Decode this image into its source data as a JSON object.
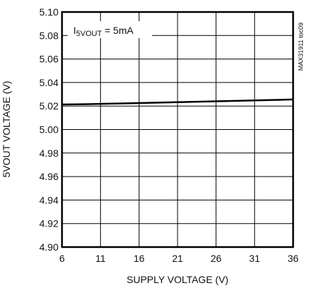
{
  "chart_data": {
    "type": "line",
    "xlabel": "SUPPLY VOLTAGE (V)",
    "ylabel": "5VOUT VOLTAGE (V)",
    "xlim": [
      6,
      36
    ],
    "ylim": [
      4.9,
      5.1
    ],
    "xticks": [
      6,
      11,
      16,
      21,
      26,
      31,
      36
    ],
    "yticks": [
      4.9,
      4.92,
      4.94,
      4.96,
      4.98,
      5.0,
      5.02,
      5.04,
      5.06,
      5.08,
      5.1
    ],
    "grid": true,
    "annotation": {
      "main": "I",
      "sub": "5VOUT",
      "rest": " = 5mA"
    },
    "side_label": "MAX31911 toc09",
    "series": [
      {
        "x": [
          6,
          8,
          10,
          12,
          14,
          16,
          18,
          20,
          22,
          24,
          26,
          28,
          30,
          32,
          34,
          36
        ],
        "values": [
          5.0213,
          5.0215,
          5.0217,
          5.022,
          5.0222,
          5.0225,
          5.0228,
          5.0231,
          5.0234,
          5.0237,
          5.024,
          5.0243,
          5.0246,
          5.0249,
          5.0252,
          5.0256
        ]
      }
    ]
  }
}
